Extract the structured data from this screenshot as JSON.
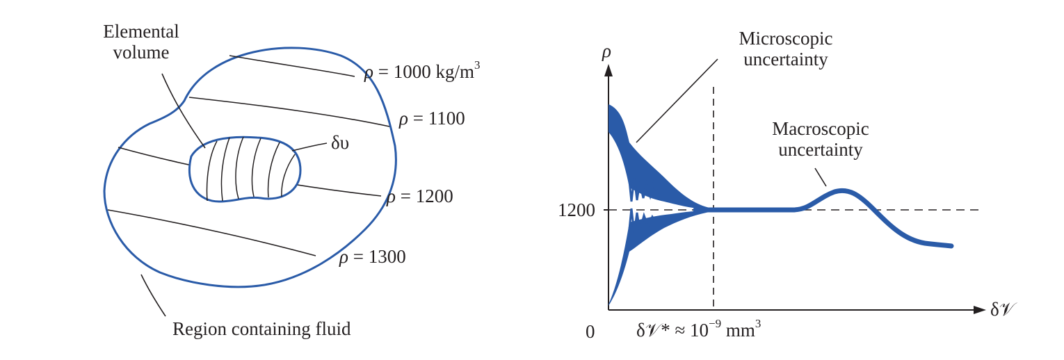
{
  "left_figure": {
    "label_elemental_volume": [
      "Elemental",
      "volume"
    ],
    "label_dv": "δυ",
    "label_region": "Region containing fluid",
    "isolines": [
      {
        "symbol": "ρ",
        "text": " = 1000 kg/m",
        "sup": "3"
      },
      {
        "symbol": "ρ",
        "text": " = 1100",
        "sup": ""
      },
      {
        "symbol": "ρ",
        "text": " = 1200",
        "sup": ""
      },
      {
        "symbol": "ρ",
        "text": " = 1300",
        "sup": ""
      }
    ]
  },
  "right_figure": {
    "y_axis_label": "ρ",
    "x_axis_label": "δ𝒱",
    "origin_label": "0",
    "reference_value": "1200",
    "threshold_label": {
      "pre": "δ𝒱* ≈ 10",
      "sup": "−9",
      "post": " mm",
      "sup2": "3"
    },
    "annotation_microscopic": [
      "Microscopic",
      "uncertainty"
    ],
    "annotation_macroscopic": [
      "Macroscopic",
      "uncertainty"
    ]
  },
  "colors": {
    "curve": "#2a5ba8",
    "ink": "#231f20"
  }
}
